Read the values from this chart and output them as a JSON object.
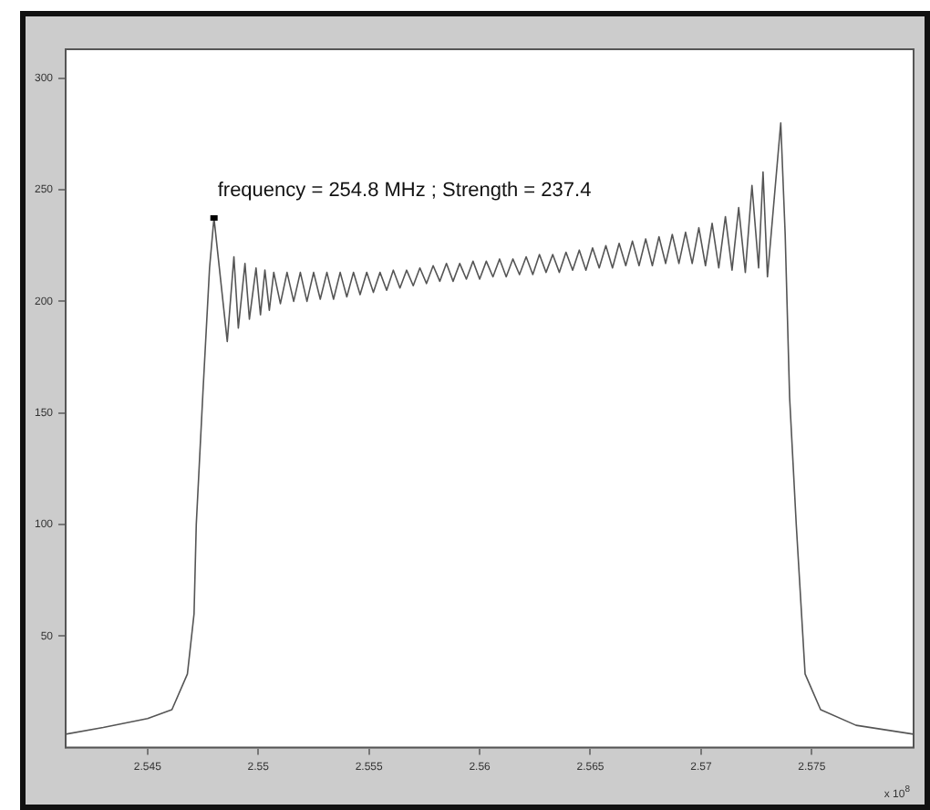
{
  "chart_data": {
    "type": "line",
    "color": "#555555",
    "x": [
      2.5413,
      2.543,
      2.545,
      2.5461,
      2.5468,
      2.5471,
      2.5472,
      2.5475,
      2.5478,
      2.548,
      2.5486,
      2.5489,
      2.5491,
      2.5494,
      2.5496,
      2.5499,
      2.5501,
      2.5503,
      2.5505,
      2.5507,
      2.551,
      2.5513,
      2.5516,
      2.5519,
      2.5522,
      2.5525,
      2.5528,
      2.5531,
      2.5534,
      2.5537,
      2.554,
      2.5543,
      2.5546,
      2.5549,
      2.5552,
      2.5555,
      2.5558,
      2.5561,
      2.5564,
      2.5567,
      2.557,
      2.5573,
      2.5576,
      2.5579,
      2.5582,
      2.5585,
      2.5588,
      2.5591,
      2.5594,
      2.5597,
      2.56,
      2.5603,
      2.5606,
      2.5609,
      2.5612,
      2.5615,
      2.5618,
      2.5621,
      2.5624,
      2.5627,
      2.563,
      2.5633,
      2.5636,
      2.5639,
      2.5642,
      2.5645,
      2.5648,
      2.5651,
      2.5654,
      2.5657,
      2.566,
      2.5663,
      2.5666,
      2.5669,
      2.5672,
      2.5675,
      2.5678,
      2.5681,
      2.5684,
      2.5687,
      2.569,
      2.5693,
      2.5696,
      2.5699,
      2.5702,
      2.5705,
      2.5708,
      2.5711,
      2.5714,
      2.5717,
      2.572,
      2.5723,
      2.5726,
      2.5728,
      2.573,
      2.5736,
      2.5738,
      2.574,
      2.5743,
      2.5747,
      2.5754,
      2.577,
      2.5796
    ],
    "values": [
      6,
      9,
      13,
      17,
      33,
      60,
      100,
      159,
      215,
      237.4,
      182,
      220,
      188,
      217,
      192,
      215,
      194,
      214,
      196,
      213,
      199,
      213,
      200,
      213,
      200,
      213,
      201,
      213,
      201,
      213,
      202,
      213,
      203,
      213,
      204,
      213,
      205,
      214,
      206,
      214,
      207,
      215,
      208,
      216,
      209,
      217,
      209,
      217,
      210,
      218,
      210,
      218,
      211,
      219,
      211,
      219,
      212,
      220,
      212,
      221,
      213,
      221,
      213,
      222,
      214,
      223,
      214,
      224,
      215,
      225,
      215,
      226,
      216,
      227,
      216,
      228,
      216,
      229,
      217,
      230,
      217,
      231,
      217,
      233,
      216,
      235,
      215,
      238,
      214,
      242,
      213,
      252,
      215,
      258,
      211,
      280,
      230,
      157,
      100,
      33,
      17,
      10,
      6
    ],
    "xlim": [
      2.5413,
      2.5796
    ],
    "xticks": [
      2.545,
      2.55,
      2.555,
      2.56,
      2.565,
      2.57,
      2.575
    ],
    "ylim": [
      0,
      313
    ],
    "yticks": [
      50,
      100,
      150,
      200,
      250,
      300
    ],
    "annotations": [
      {
        "text": "frequency = 254.8 MHz ; Strength = 237.4",
        "x": 2.548,
        "y": 237.4
      },
      "x 10$^{8}$"
    ]
  }
}
